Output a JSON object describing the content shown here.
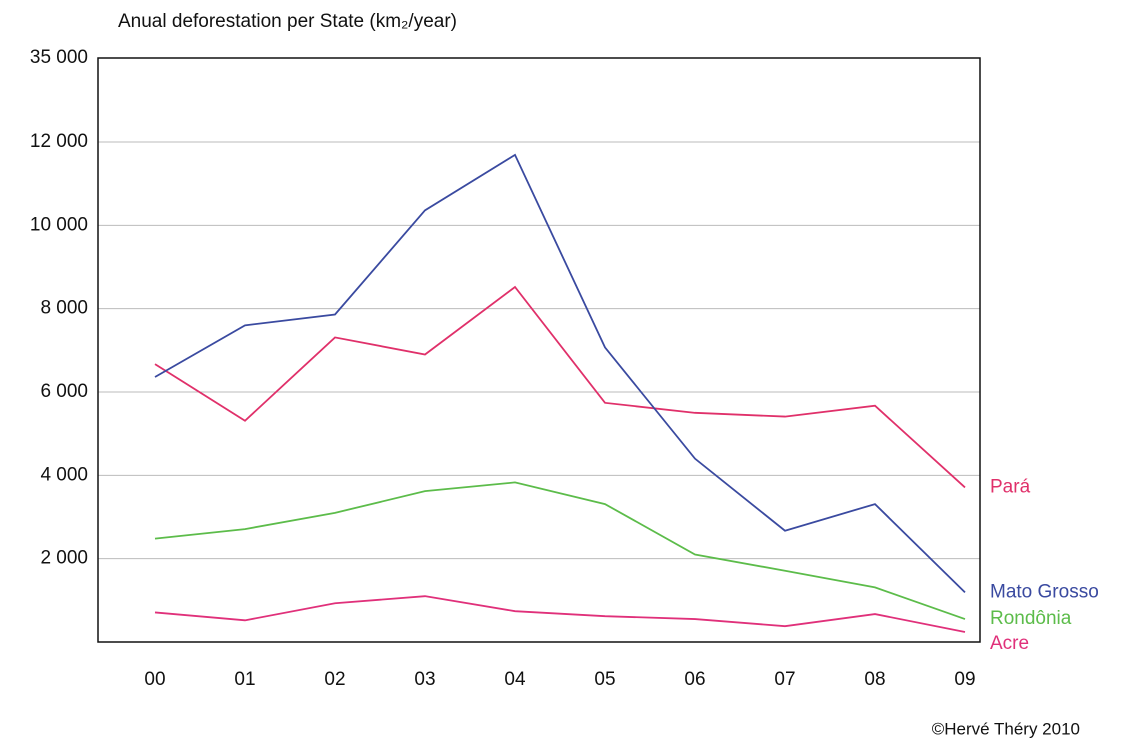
{
  "chart_data": {
    "type": "line",
    "title": "Anual deforestation per State (km₂/year)",
    "credit": "©Hervé Théry 2010",
    "categories": [
      "00",
      "01",
      "02",
      "03",
      "04",
      "05",
      "06",
      "07",
      "08",
      "09"
    ],
    "series": [
      {
        "name": "Pará",
        "color": "#e0306a",
        "values": [
          6670,
          5310,
          7310,
          6900,
          8520,
          5740,
          5500,
          5410,
          5670,
          3710
        ]
      },
      {
        "name": "Mato Grosso",
        "color": "#3a4aa0",
        "values": [
          6360,
          7600,
          7860,
          10360,
          11690,
          7070,
          4400,
          2670,
          3310,
          1190
        ]
      },
      {
        "name": "Rondônia",
        "color": "#5cbc4a",
        "values": [
          2480,
          2710,
          3100,
          3620,
          3830,
          3310,
          2100,
          1710,
          1310,
          550
        ]
      },
      {
        "name": "Acre",
        "color": "#e0307a",
        "values": [
          710,
          520,
          930,
          1100,
          740,
          620,
          550,
          380,
          670,
          240
        ]
      }
    ],
    "ylim": [
      0,
      35000
    ],
    "axis_break": true,
    "yticks": [
      {
        "value": 2000,
        "label": "2 000"
      },
      {
        "value": 4000,
        "label": "4 000"
      },
      {
        "value": 6000,
        "label": "6 000"
      },
      {
        "value": 8000,
        "label": "8 000"
      },
      {
        "value": 10000,
        "label": "10 000"
      },
      {
        "value": 12000,
        "label": "12 000"
      },
      {
        "value": 35000,
        "label": "35 000"
      }
    ],
    "grid": true
  }
}
